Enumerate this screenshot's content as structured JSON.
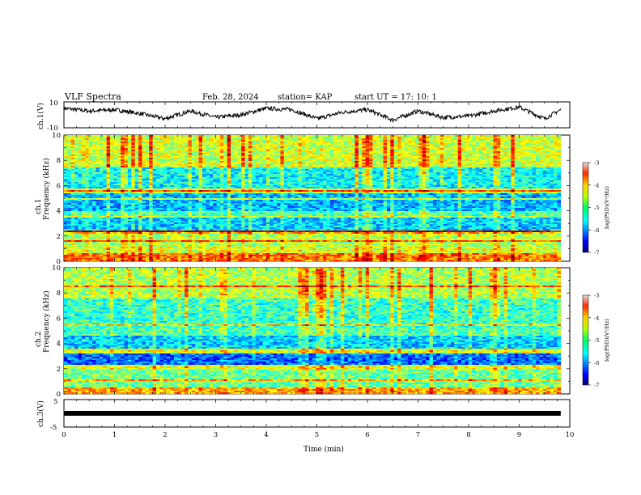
{
  "header": {
    "title": "VLF Spectra",
    "date": "Feb. 28, 2024",
    "station": "station= KAP",
    "start": "start  UT =   17: 10: 1"
  },
  "chart_data": [
    {
      "type": "line",
      "panel": "ch1-waveform",
      "ylabel": "ch.1(V)",
      "y_ticks": [
        "10",
        "-10"
      ],
      "ylim": [
        -10,
        10
      ],
      "xlim": [
        0,
        10
      ],
      "x_ticks": [
        "0",
        "1",
        "2",
        "3",
        "4",
        "5",
        "6",
        "7",
        "8",
        "9",
        "10"
      ],
      "xlabel": "Time (min)",
      "duration_min": 9.82,
      "series": [
        {
          "x": [
            0,
            0.5,
            1,
            1.5,
            2,
            2.5,
            3,
            3.5,
            4,
            4.5,
            5,
            5.5,
            6,
            6.5,
            7,
            7.5,
            8,
            8.5,
            9,
            9.5,
            9.82
          ],
          "values": [
            5,
            3,
            4,
            1,
            -3,
            3,
            -2,
            0,
            5,
            4,
            -3,
            2,
            4,
            -4,
            3,
            -2,
            -1,
            3,
            6,
            -3,
            4
          ]
        }
      ]
    },
    {
      "type": "heatmap",
      "panel": "ch1-spectrogram",
      "ylabel": "ch.1\nFrequency (kHz)",
      "ylabel_top": "ch.1",
      "ylabel_bottom": "Frequency (kHz)",
      "y_ticks": [
        "0",
        "2",
        "4",
        "6",
        "8",
        "10"
      ],
      "ylim": [
        0,
        10
      ],
      "xlim": [
        0,
        10
      ],
      "duration_min": 9.82,
      "colorbar": {
        "label": "log(PSD)(V²/Hz)",
        "range": [
          -7,
          -3
        ],
        "ticks": [
          "-3",
          "-4",
          "-5",
          "-6",
          "-7"
        ],
        "colormap": "jet"
      },
      "bands_khz": [
        {
          "from": 0,
          "to": 0.6,
          "level": -4.0
        },
        {
          "from": 0.6,
          "to": 1.2,
          "level": -4.6
        },
        {
          "from": 1.2,
          "to": 2.2,
          "level": -4.8
        },
        {
          "from": 2.2,
          "to": 2.5,
          "level": -4.2
        },
        {
          "from": 2.5,
          "to": 3.6,
          "level": -5.7
        },
        {
          "from": 3.6,
          "to": 4.0,
          "level": -5.2
        },
        {
          "from": 4.0,
          "to": 5.4,
          "level": -5.8
        },
        {
          "from": 5.4,
          "to": 5.8,
          "level": -4.8
        },
        {
          "from": 5.8,
          "to": 7.5,
          "level": -5.5
        },
        {
          "from": 7.5,
          "to": 10,
          "level": -4.7
        }
      ]
    },
    {
      "type": "heatmap",
      "panel": "ch2-spectrogram",
      "ylabel": "ch.2\nFrequency (kHz)",
      "ylabel_top": "ch.2",
      "ylabel_bottom": "Frequency (kHz)",
      "y_ticks": [
        "0",
        "2",
        "4",
        "6",
        "8",
        "10"
      ],
      "ylim": [
        0,
        10
      ],
      "xlim": [
        0,
        10
      ],
      "duration_min": 9.82,
      "colorbar": {
        "label": "log(PSD)(V²/Hz)",
        "range": [
          -7,
          -3
        ],
        "ticks": [
          "-3",
          "-4",
          "-5",
          "-6",
          "-7"
        ],
        "colormap": "jet"
      },
      "bands_khz": [
        {
          "from": 0,
          "to": 0.5,
          "level": -4.2
        },
        {
          "from": 0.5,
          "to": 1.9,
          "level": -5.1
        },
        {
          "from": 1.9,
          "to": 2.3,
          "level": -4.6
        },
        {
          "from": 2.3,
          "to": 3.2,
          "level": -6.1
        },
        {
          "from": 3.2,
          "to": 3.6,
          "level": -4.6
        },
        {
          "from": 3.6,
          "to": 4.6,
          "level": -5.7
        },
        {
          "from": 4.6,
          "to": 5.2,
          "level": -5.2
        },
        {
          "from": 5.2,
          "to": 7.6,
          "level": -5.3
        },
        {
          "from": 7.6,
          "to": 10,
          "level": -4.8
        }
      ]
    },
    {
      "type": "line",
      "panel": "ch3-waveform",
      "ylabel": "ch.3(V)",
      "y_ticks": [
        "5",
        "0",
        "-5"
      ],
      "ylim": [
        -5,
        5
      ],
      "xlim": [
        0,
        10
      ],
      "duration_min": 9.82,
      "series": [
        {
          "x": [
            0,
            9.82
          ],
          "values": [
            0,
            0
          ]
        }
      ]
    }
  ]
}
